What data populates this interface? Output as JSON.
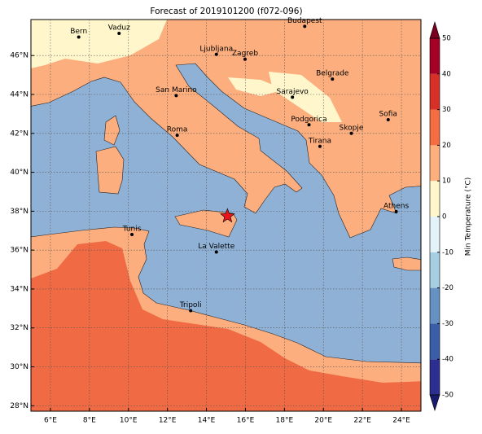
{
  "chart_data": {
    "type": "map",
    "title": "Forecast of 2019101200 (f072-096)",
    "xlim": [
      5,
      25
    ],
    "ylim": [
      27.72,
      47.85
    ],
    "grid": true,
    "xticks": [
      {
        "value": 6,
        "label": "6°E"
      },
      {
        "value": 8,
        "label": "8°E"
      },
      {
        "value": 10,
        "label": "10°E"
      },
      {
        "value": 12,
        "label": "12°E"
      },
      {
        "value": 14,
        "label": "14°E"
      },
      {
        "value": 16,
        "label": "16°E"
      },
      {
        "value": 18,
        "label": "18°E"
      },
      {
        "value": 20,
        "label": "20°E"
      },
      {
        "value": 22,
        "label": "22°E"
      },
      {
        "value": 24,
        "label": "24°E"
      }
    ],
    "yticks": [
      {
        "value": 28,
        "label": "28°N"
      },
      {
        "value": 30,
        "label": "30°N"
      },
      {
        "value": 32,
        "label": "32°N"
      },
      {
        "value": 34,
        "label": "34°N"
      },
      {
        "value": 36,
        "label": "36°N"
      },
      {
        "value": 38,
        "label": "38°N"
      },
      {
        "value": 40,
        "label": "40°N"
      },
      {
        "value": 42,
        "label": "42°N"
      },
      {
        "value": 44,
        "label": "44°N"
      },
      {
        "value": 46,
        "label": "46°N"
      }
    ],
    "cities": {
      "names": [
        "Bern",
        "Vaduz",
        "Budapest",
        "Ljubljana",
        "Zagreb",
        "Belgrade",
        "San Marino",
        "Sarajevo",
        "Sofia",
        "Podgorica",
        "Skopje",
        "Roma",
        "Tirana",
        "Athens",
        "Tunis",
        "La Valette",
        "Tripoli"
      ],
      "lon": [
        7.45,
        9.52,
        19.04,
        14.51,
        15.98,
        20.46,
        12.45,
        18.41,
        23.32,
        19.26,
        21.43,
        12.5,
        19.82,
        23.73,
        10.18,
        14.51,
        13.19
      ],
      "lat": [
        46.95,
        47.14,
        47.5,
        46.06,
        45.81,
        44.79,
        43.94,
        43.86,
        42.7,
        42.44,
        42.0,
        41.9,
        41.33,
        37.98,
        36.8,
        35.9,
        32.89
      ]
    },
    "marker": {
      "lon": 15.08,
      "lat": 37.75
    },
    "colorbar": {
      "label": "Min Temperature (°C)",
      "clim": [
        -50,
        50
      ],
      "ticks": [
        -50,
        -40,
        -30,
        -20,
        -10,
        0,
        10,
        20,
        30,
        40,
        50
      ],
      "colors": [
        "#2c2f8f",
        "#3b5ea8",
        "#6591c3",
        "#a6cfe3",
        "#e3f3f9",
        "#fff7cb",
        "#fdb07d",
        "#f46d43",
        "#d73027",
        "#a50026"
      ],
      "under": "#1a1a6e",
      "over": "#7a0022"
    }
  }
}
